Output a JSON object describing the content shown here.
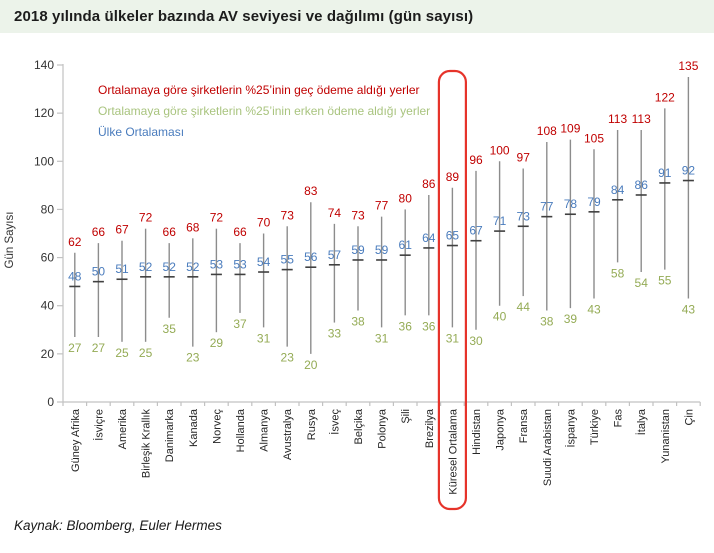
{
  "title": "2018 yılında ülkeler bazında AV seviyesi ve dağılımı (gün sayısı)",
  "source_note": "Kaynak: Bloomberg, Euler Hermes",
  "colors": {
    "title_bg": "#ECF3EA",
    "late": "#C00000",
    "early_legend": "#A9C47F",
    "early_value": "#94AB55",
    "average": "#4A7CBD",
    "whisker": "#8C8C8C",
    "mean_dash": "#404040",
    "axis": "#C2C2C2",
    "axis_text": "#333333",
    "category_text": "#262626",
    "highlight": "#E6332A"
  },
  "chart_data": {
    "type": "range",
    "variant": "high-low-average-whiskers",
    "title": "2018 yılında ülkeler bazında AV seviyesi ve dağılımı (gün sayısı)",
    "xlabel": "",
    "ylabel": "Gün Sayısı",
    "ylim": [
      0,
      140
    ],
    "ytick_step": 20,
    "yticks": [
      0,
      20,
      40,
      60,
      80,
      100,
      120,
      140
    ],
    "grid": false,
    "legend_position": "top-left-inside",
    "categories": [
      "Güney Afrika",
      "İsviçre",
      "Amerika",
      "Birleşik Krallık",
      "Danimarka",
      "Kanada",
      "Norveç",
      "Hollanda",
      "Almanya",
      "Avustralya",
      "Rusya",
      "İsveç",
      "Belçika",
      "Polonya",
      "Şili",
      "Brezilya",
      "Küresel Ortalama",
      "Hindistan",
      "Japonya",
      "Fransa",
      "Suudi Arabistan",
      "İspanya",
      "Türkiye",
      "Fas",
      "İtalya",
      "Yunanistan",
      "Çin"
    ],
    "series": [
      {
        "name": "Ortalamaya göre şirketlerin %25’inin geç ödeme aldığı yerler",
        "role": "high",
        "color": "#C00000",
        "values": [
          62,
          66,
          67,
          72,
          66,
          68,
          72,
          66,
          70,
          73,
          83,
          74,
          73,
          77,
          80,
          86,
          89,
          96,
          100,
          97,
          108,
          109,
          105,
          113,
          113,
          122,
          135
        ]
      },
      {
        "name": "Ortalamaya göre şirketlerin %25’inin erken ödeme aldığı yerler",
        "role": "low",
        "color": "#A9C47F",
        "values": [
          27,
          27,
          25,
          25,
          35,
          23,
          29,
          37,
          31,
          23,
          20,
          33,
          38,
          31,
          36,
          36,
          31,
          30,
          40,
          44,
          38,
          39,
          43,
          58,
          54,
          55,
          43
        ]
      },
      {
        "name": "Ülke Ortalaması",
        "role": "average",
        "color": "#4A7CBD",
        "values": [
          48,
          50,
          51,
          52,
          52,
          52,
          53,
          53,
          54,
          55,
          56,
          57,
          59,
          59,
          61,
          64,
          65,
          67,
          71,
          73,
          77,
          78,
          79,
          84,
          86,
          91,
          92
        ]
      }
    ],
    "highlight": {
      "category": "Küresel Ortalama",
      "index": 16,
      "color": "#E6332A"
    }
  }
}
